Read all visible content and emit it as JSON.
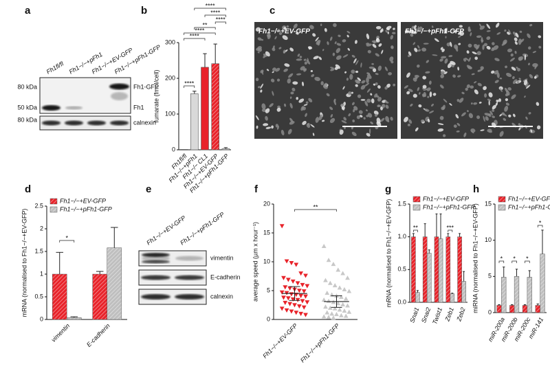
{
  "blots": {
    "a": {
      "label": "a",
      "lanes": [
        "Fh1fl/fl",
        "Fh1−/−+pFh1",
        "Fh1−/−+EV-GFP",
        "Fh1−/−+pFh1-GFP"
      ],
      "markers": [
        "80 kDa",
        "50 kDa",
        "80 kDa"
      ],
      "bands": [
        "Fh1-GFP",
        "Fh1",
        "calnexin"
      ]
    },
    "e": {
      "label": "e",
      "lanes": [
        "Fh1−/−+EV-GFP",
        "Fh1−/−+pFh1-GFP"
      ],
      "bands": [
        "vimentin",
        "E-cadherin",
        "calnexin"
      ]
    }
  },
  "micrographs": {
    "label": "c",
    "panels": [
      "Fh1−/−+EV-GFP",
      "Fh1−/−+pFh1-GFP"
    ]
  },
  "chart_data": [
    {
      "type": "bar",
      "label": "b",
      "ylabel": "fumarate (fmol/cell)",
      "categories": [
        "Fh1fl/fl",
        "Fh1−/−+pFh1",
        "Fh1−/− CL1",
        "Fh1−/−+EV-GFP",
        "Fh1−/−+pFh1-GFP"
      ],
      "values": [
        0.5,
        157,
        231,
        241,
        3
      ],
      "errors": [
        0,
        7,
        38,
        55,
        3
      ],
      "colors": [
        "#ffffff",
        "#d9d9d9",
        "#e8232a",
        "#e8232a",
        "#bfbfbf"
      ],
      "hatch": [
        false,
        false,
        false,
        true,
        true
      ],
      "ylim": [
        0,
        300
      ],
      "yticks": [
        0,
        100,
        200,
        300
      ],
      "annotations": [
        "****",
        "****",
        "****",
        "**",
        "****",
        "****",
        "****"
      ]
    },
    {
      "type": "bar",
      "label": "d",
      "ylabel": "mRNA (normalised to Fh1−/−+EV-GFP)",
      "categories": [
        "vimentin",
        "E-cadherin"
      ],
      "series": [
        {
          "name": "Fh1−/−+EV-GFP",
          "color": "#e8232a",
          "hatch": true,
          "values": [
            1,
            1
          ],
          "errors": [
            0.48,
            0.06
          ]
        },
        {
          "name": "Fh1−/−+pFh1-GFP",
          "color": "#bfbfbf",
          "hatch": true,
          "values": [
            0.04,
            1.58
          ],
          "errors": [
            0.02,
            0.45
          ]
        }
      ],
      "ylim": [
        0,
        2.5
      ],
      "yticks": [
        0,
        0.5,
        1,
        1.5,
        2,
        2.5
      ],
      "legend": "upper left",
      "annotations": [
        "*"
      ]
    },
    {
      "type": "strip",
      "label": "f",
      "ylabel": "average speed (µm x hour⁻¹)",
      "categories": [
        "Fh1−/−+EV-GFP",
        "Fh1−/−+pFh1-GFP"
      ],
      "series": [
        {
          "color": "#e8232a",
          "marker": "triangle-down",
          "mean": 4.5,
          "sd": 1.2,
          "values": [
            16.2,
            10.1,
            9.8,
            9.5,
            8.0,
            7.6,
            7.2,
            6.9,
            6.6,
            6.3,
            6.0,
            5.8,
            5.6,
            5.4,
            5.2,
            5.0,
            4.9,
            4.7,
            4.6,
            4.4,
            4.3,
            4.1,
            4.0,
            3.8,
            3.7,
            3.5,
            3.4,
            3.2,
            3.0,
            2.9,
            2.7,
            2.5,
            2.3,
            2.1,
            1.9,
            1.6,
            1.4,
            1.2,
            1.0,
            0.8
          ]
        },
        {
          "color": "#c8c8c8",
          "marker": "triangle-up",
          "mean": 3.1,
          "sd": 1.0,
          "values": [
            12.7,
            10.3,
            9.6,
            8.6,
            8.0,
            7.2,
            6.8,
            6.3,
            5.9,
            5.5,
            5.2,
            4.9,
            4.6,
            4.3,
            4.1,
            3.9,
            3.6,
            3.4,
            3.2,
            3.0,
            2.8,
            2.6,
            2.4,
            2.2,
            2.0,
            1.9,
            1.7,
            1.5,
            1.3,
            1.2,
            1.0,
            0.9,
            0.7,
            0.6,
            0.5,
            0.4,
            0.3
          ]
        }
      ],
      "ylim": [
        0,
        20
      ],
      "yticks": [
        0,
        5,
        10,
        15,
        20
      ],
      "annotations": [
        "**"
      ]
    },
    {
      "type": "bar",
      "label": "g",
      "ylabel": "mRNA (normalised to Fh1−/−+EV-GFP)",
      "categories": [
        "Snai1",
        "Snai2",
        "Twist1",
        "Zeb1",
        "Zeb2"
      ],
      "series": [
        {
          "name": "Fh1−/−+EV-GFP",
          "color": "#e8232a",
          "hatch": true,
          "values": [
            1,
            1,
            1,
            1,
            1
          ],
          "errors": [
            0.05,
            0.2,
            0.35,
            0.05,
            0.05
          ]
        },
        {
          "name": "Fh1−/−+pFh1-GFP",
          "color": "#bfbfbf",
          "hatch": true,
          "values": [
            0.15,
            0.75,
            0.97,
            0.13,
            0.32
          ],
          "errors": [
            0.03,
            0.05,
            0.38,
            0.01,
            0.15
          ]
        }
      ],
      "ylim": [
        0,
        1.5
      ],
      "yticks": [
        {
          "value": 0,
          "label": "0.0"
        },
        0.5,
        {
          "value": 1,
          "label": "1.0"
        },
        1.5
      ],
      "legend": "upper left",
      "annotations": [
        "**",
        "***"
      ]
    },
    {
      "type": "bar",
      "label": "h",
      "ylabel": "miRNA (normalised to Fh1−/−+EV-GFP)",
      "categories": [
        "miR-200a",
        "miR-200b",
        "miR-200c",
        "miR-141"
      ],
      "series": [
        {
          "name": "Fh1−/−+EV-GFP",
          "color": "#e8232a",
          "hatch": true,
          "values": [
            1,
            1,
            1,
            1
          ],
          "errors": [
            0.1,
            0.1,
            0.1,
            0.2
          ]
        },
        {
          "name": "Fh1−/−+pFh1-GFP",
          "color": "#bfbfbf",
          "hatch": true,
          "values": [
            4.9,
            5.0,
            4.9,
            8.1
          ],
          "errors": [
            1.4,
            1.0,
            0.9,
            3.3
          ]
        }
      ],
      "ylim": [
        0,
        15
      ],
      "yticks": [
        0,
        5,
        10,
        15
      ],
      "legend": "upper left",
      "annotations": [
        "*",
        "*",
        "*",
        "*"
      ]
    }
  ]
}
